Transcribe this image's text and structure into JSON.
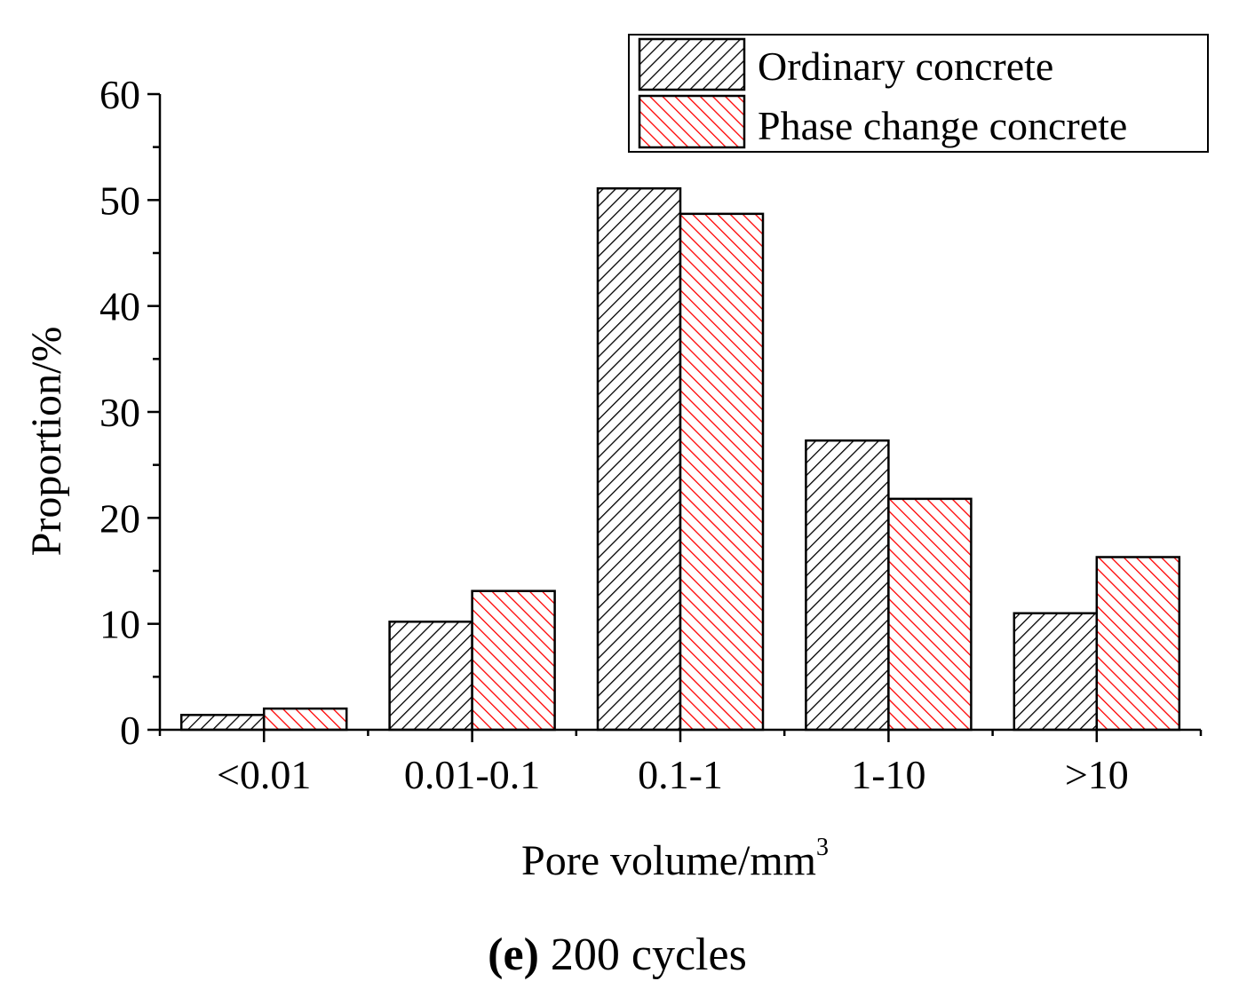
{
  "chart_data": {
    "type": "bar",
    "title": "",
    "categories": [
      "<0.01",
      "0.01-0.1",
      "0.1-1",
      "1-10",
      ">10"
    ],
    "series": [
      {
        "name": "Ordinary concrete",
        "color": "#000000",
        "values": [
          1.4,
          10.2,
          51.1,
          27.3,
          11.0
        ]
      },
      {
        "name": "Phase change concrete",
        "color": "#ff0000",
        "values": [
          2.0,
          13.1,
          48.7,
          21.8,
          16.3
        ]
      }
    ],
    "xlabel": "Pore volume/mm",
    "xlabel_sup": "3",
    "ylabel": "Proportion/%",
    "ylim": [
      0,
      60
    ],
    "yticks": [
      0,
      10,
      20,
      30,
      40,
      50,
      60
    ],
    "yticks_minor_step": 5,
    "legend_position": "top-right",
    "grid": false
  },
  "caption": {
    "label": "(e)",
    "text": "200 cycles"
  }
}
